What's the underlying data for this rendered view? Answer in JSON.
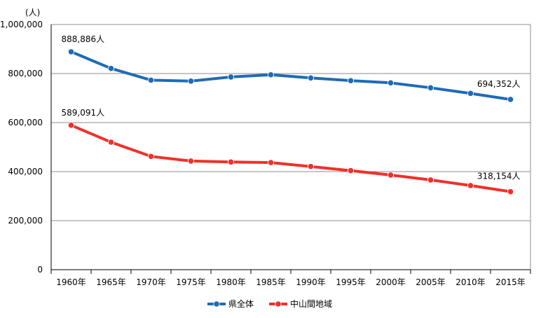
{
  "chart_data": {
    "type": "line",
    "y_unit": "(人)",
    "categories": [
      "1960年",
      "1965年",
      "1970年",
      "1975年",
      "1980年",
      "1985年",
      "1990年",
      "1995年",
      "2000年",
      "2005年",
      "2010年",
      "2015年"
    ],
    "ylim": [
      0,
      1000000
    ],
    "yticks": [
      {
        "value": 0,
        "label": "0"
      },
      {
        "value": 200000,
        "label": "200,000"
      },
      {
        "value": 400000,
        "label": "400,000"
      },
      {
        "value": 600000,
        "label": "600,000"
      },
      {
        "value": 800000,
        "label": "800,000"
      },
      {
        "value": 1000000,
        "label": "1,000,000"
      }
    ],
    "grid": true,
    "legend_position": "bottom",
    "series": [
      {
        "name": "県全体",
        "color": "#1f6bb5",
        "values": [
          888886,
          821000,
          773000,
          769000,
          786000,
          795000,
          782000,
          771000,
          762000,
          742000,
          719000,
          694352
        ],
        "annotations": [
          {
            "index": 0,
            "text": "888,886人"
          },
          {
            "index": 11,
            "text": "694,352人"
          }
        ]
      },
      {
        "name": "中山間地域",
        "color": "#f0302a",
        "values": [
          589091,
          520000,
          462000,
          443000,
          439000,
          437000,
          421000,
          404000,
          386000,
          366000,
          343000,
          318154
        ],
        "annotations": [
          {
            "index": 0,
            "text": "589,091人"
          },
          {
            "index": 11,
            "text": "318,154人"
          }
        ]
      }
    ]
  }
}
